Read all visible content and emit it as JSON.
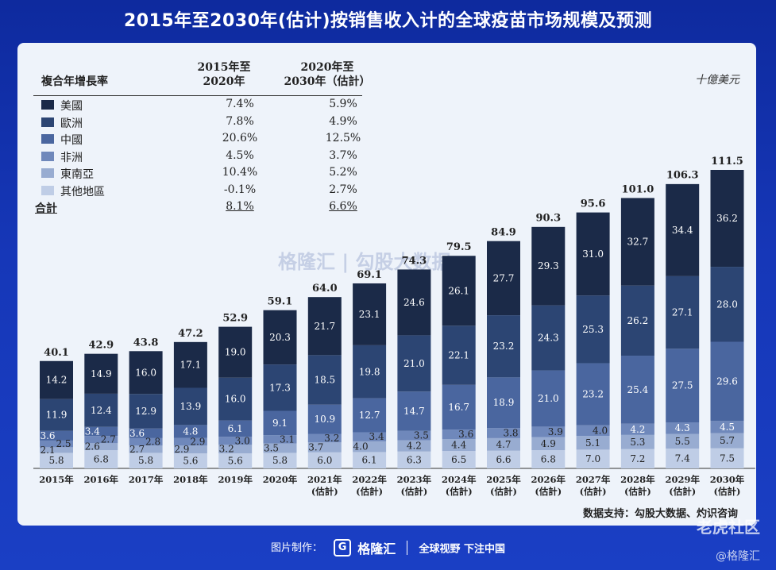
{
  "title": "2015年至2030年(估计)按销售收入计的全球疫苗市场规模及预测",
  "unit": "十億美元",
  "credit": "数据支持：勾股大数据、灼识咨询",
  "footer": {
    "made": "图片制作：",
    "brand": "格隆汇",
    "slogan": "全球视野 下注中国",
    "logo_glyph": "G"
  },
  "watermarks": {
    "center": "格隆汇 | 勾股大数据",
    "right": "老虎社区",
    "right2": "@格隆汇"
  },
  "cagr_table": {
    "header_label": "複合年增長率",
    "col1": [
      "2015年至",
      "2020年"
    ],
    "col2": [
      "2020年至",
      "2030年（估計）"
    ],
    "rows": [
      {
        "name": "美國",
        "v1": "7.4%",
        "v2": "5.9%",
        "color": "#1b2a48"
      },
      {
        "name": "歐洲",
        "v1": "7.8%",
        "v2": "4.9%",
        "color": "#2c4573"
      },
      {
        "name": "中國",
        "v1": "20.6%",
        "v2": "12.5%",
        "color": "#4a669f"
      },
      {
        "name": "非洲",
        "v1": "4.5%",
        "v2": "3.7%",
        "color": "#6f88bb"
      },
      {
        "name": "東南亞",
        "v1": "10.4%",
        "v2": "5.2%",
        "color": "#98acd1"
      },
      {
        "name": "其他地區",
        "v1": "-0.1%",
        "v2": "2.7%",
        "color": "#bfcde6"
      }
    ],
    "total": {
      "name": "合計",
      "v1": "8.1%",
      "v2": "6.6%"
    }
  },
  "chart_data": {
    "type": "bar",
    "stacked": true,
    "categories": [
      [
        "2015年"
      ],
      [
        "2016年"
      ],
      [
        "2017年"
      ],
      [
        "2018年"
      ],
      [
        "2019年"
      ],
      [
        "2020年"
      ],
      [
        "2021年",
        "(估計)"
      ],
      [
        "2022年",
        "(估計)"
      ],
      [
        "2023年",
        "(估計)"
      ],
      [
        "2024年",
        "(估計)"
      ],
      [
        "2025年",
        "(估計)"
      ],
      [
        "2026年",
        "(估計)"
      ],
      [
        "2027年",
        "(估計)"
      ],
      [
        "2028年",
        "(估計)"
      ],
      [
        "2029年",
        "(估計)"
      ],
      [
        "2030年",
        "(估計)"
      ]
    ],
    "totals": [
      40.1,
      42.9,
      43.8,
      47.2,
      52.9,
      59.1,
      64.0,
      69.1,
      74.3,
      79.5,
      84.9,
      90.3,
      95.6,
      101.0,
      106.3,
      111.5
    ],
    "series": [
      {
        "name": "其他地區",
        "color": "#bfcde6",
        "values": [
          5.8,
          6.8,
          5.8,
          5.6,
          5.6,
          5.8,
          6.0,
          6.1,
          6.3,
          6.5,
          6.6,
          6.8,
          7.0,
          7.2,
          7.4,
          7.5
        ]
      },
      {
        "name": "東南亞",
        "color": "#98acd1",
        "values": [
          2.1,
          2.6,
          2.7,
          2.9,
          3.2,
          3.5,
          3.7,
          4.0,
          4.2,
          4.4,
          4.7,
          4.9,
          5.1,
          5.3,
          5.5,
          5.7
        ]
      },
      {
        "name": "非洲",
        "color": "#6f88bb",
        "values": [
          2.5,
          2.7,
          2.8,
          2.9,
          3.0,
          3.1,
          3.2,
          3.4,
          3.5,
          3.6,
          3.8,
          3.9,
          4.0,
          4.2,
          4.3,
          4.5
        ]
      },
      {
        "name": "中國",
        "color": "#4a669f",
        "values": [
          3.6,
          3.4,
          3.6,
          4.8,
          6.1,
          9.1,
          10.9,
          12.7,
          14.7,
          16.7,
          18.9,
          21.0,
          23.2,
          25.4,
          27.5,
          29.6
        ]
      },
      {
        "name": "歐洲",
        "color": "#2c4573",
        "values": [
          11.9,
          12.4,
          12.9,
          13.9,
          16.0,
          17.3,
          18.5,
          19.8,
          21.0,
          22.1,
          23.2,
          24.3,
          25.3,
          26.2,
          27.1,
          28.0
        ]
      },
      {
        "name": "美國",
        "color": "#1b2a48",
        "values": [
          14.2,
          14.9,
          16.0,
          17.1,
          19.0,
          20.3,
          21.7,
          23.1,
          24.6,
          26.1,
          27.7,
          29.3,
          31.0,
          32.7,
          34.4,
          36.2
        ]
      }
    ],
    "ylim": [
      0,
      120
    ],
    "grid": false,
    "legend": "top-left (table)"
  }
}
